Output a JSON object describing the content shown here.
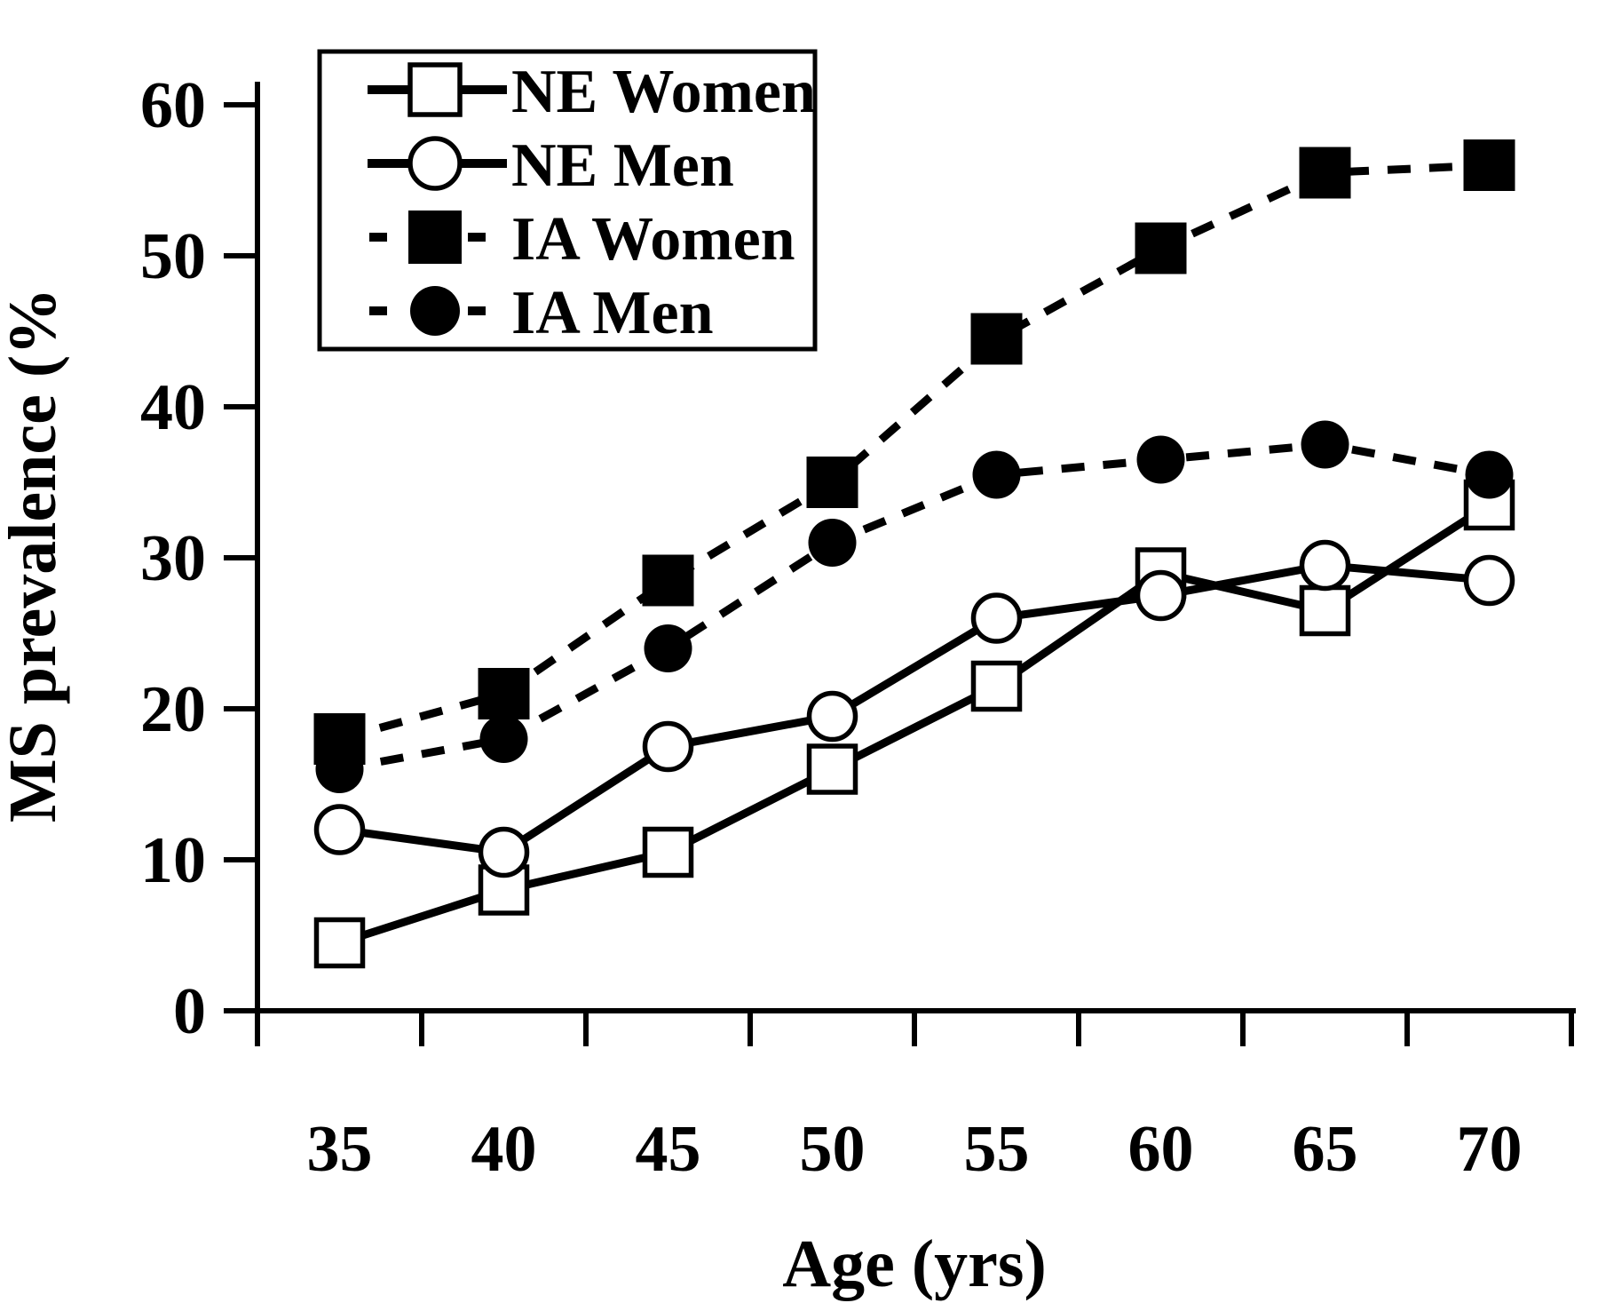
{
  "figure": {
    "background": "#ffffff",
    "ink_color": "#000000"
  },
  "chart_data": {
    "type": "line",
    "title": "",
    "xlabel": "Age (yrs)",
    "ylabel": "MS prevalence (%",
    "x_categories": [
      35,
      40,
      45,
      50,
      55,
      60,
      65,
      70
    ],
    "x_tick_labels": [
      "35",
      "40",
      "45",
      "50",
      "55",
      "60",
      "65",
      "70"
    ],
    "y_ticks": [
      0,
      10,
      20,
      30,
      40,
      50,
      60
    ],
    "ylim": [
      0,
      60
    ],
    "grid": false,
    "legend_position": "top-left",
    "series": [
      {
        "name": "NE Women",
        "marker": "open-square",
        "line": "solid",
        "values": [
          4.5,
          8,
          10.5,
          16,
          21.5,
          29,
          26.5,
          33.5
        ]
      },
      {
        "name": "NE Men",
        "marker": "open-circle",
        "line": "solid",
        "values": [
          12,
          10.5,
          17.5,
          19.5,
          26,
          27.5,
          29.5,
          28.5
        ]
      },
      {
        "name": "IA Women",
        "marker": "filled-square",
        "line": "dashed",
        "values": [
          18,
          21,
          28.5,
          35,
          44.5,
          50.5,
          55.5,
          56
        ]
      },
      {
        "name": "IA Men",
        "marker": "filled-circle",
        "line": "dashed",
        "values": [
          16,
          18,
          24,
          31,
          35.5,
          36.5,
          37.5,
          35.5
        ]
      }
    ]
  }
}
